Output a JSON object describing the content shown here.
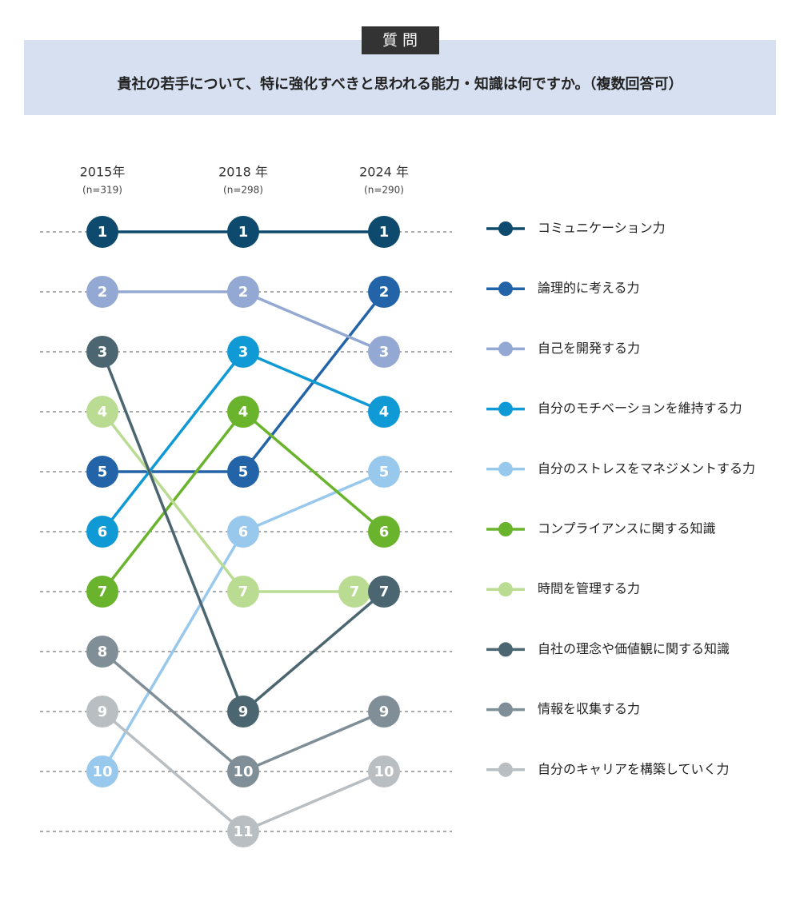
{
  "header": {
    "label": "質 問",
    "question": "貴社の若手について、特に強化すべきと思われる能力・知識は何ですか。（複数回答可）"
  },
  "chart_data": {
    "type": "bump",
    "x": [
      "2015年",
      "2018 年",
      "2024 年"
    ],
    "x_notes": [
      "(n=319)",
      "(n=298)",
      "(n=290)"
    ],
    "ylim": [
      11,
      1
    ],
    "yticks": [
      1,
      2,
      3,
      4,
      5,
      6,
      7,
      8,
      9,
      10,
      11
    ],
    "grid": true,
    "legend": "right",
    "series": [
      {
        "name": "コミュニケーション力",
        "color": "#0d4a6e",
        "values": [
          1,
          1,
          1
        ]
      },
      {
        "name": "論理的に考える力",
        "color": "#2364a8",
        "values": [
          5,
          5,
          2
        ]
      },
      {
        "name": "自己を開発する力",
        "color": "#93a8d2",
        "values": [
          2,
          2,
          3
        ]
      },
      {
        "name": "自分のモチベーションを維持する力",
        "color": "#0f9ad6",
        "values": [
          6,
          3,
          4
        ]
      },
      {
        "name": "自分のストレスをマネジメントする力",
        "color": "#98c8ec",
        "values": [
          10,
          6,
          5
        ]
      },
      {
        "name": "コンプライアンスに関する知識",
        "color": "#6ab42d",
        "values": [
          7,
          4,
          6
        ]
      },
      {
        "name": "時間を管理する力",
        "color": "#b9dc92",
        "values": [
          4,
          7,
          7
        ]
      },
      {
        "name": "自社の理念や価値観に関する知識",
        "color": "#4b6670",
        "values": [
          3,
          9,
          7
        ]
      },
      {
        "name": "情報を収集する力",
        "color": "#7f8e97",
        "values": [
          8,
          10,
          9
        ]
      },
      {
        "name": "自分のキャリアを構築していく力",
        "color": "#b9bec2",
        "values": [
          9,
          11,
          10
        ]
      }
    ]
  }
}
